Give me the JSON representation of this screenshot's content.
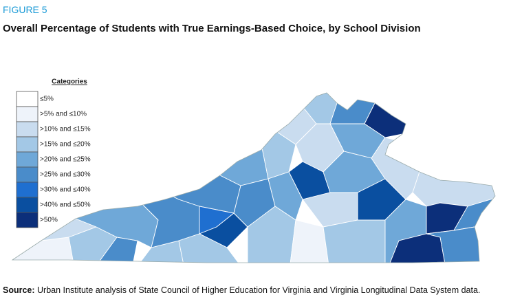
{
  "figure_label": "FIGURE 5",
  "title": "Overall Percentage of Students with True Earnings-Based Choice, by School Division",
  "legend": {
    "title": "Categories",
    "categories": [
      {
        "label": "≤5%",
        "color": "#ffffff"
      },
      {
        "label": ">5% and ≤10%",
        "color": "#eef3fa"
      },
      {
        "label": ">10% and ≤15%",
        "color": "#c9dcef"
      },
      {
        "label": ">15% and ≤20%",
        "color": "#a3c8e6"
      },
      {
        "label": ">20% and ≤25%",
        "color": "#6fa8d8"
      },
      {
        "label": ">25% and ≤30%",
        "color": "#4a8cca"
      },
      {
        "label": ">30% and ≤40%",
        "color": "#1f6fd0"
      },
      {
        "label": ">40% and ≤50%",
        "color": "#0a4fa0"
      },
      {
        "label": ">50%",
        "color": "#0c2f7a"
      }
    ]
  },
  "source": {
    "label": "Source:",
    "text": "Urban Institute analysis of State Council of Higher Education for Virginia and Virginia Longitudinal Data System data."
  }
}
